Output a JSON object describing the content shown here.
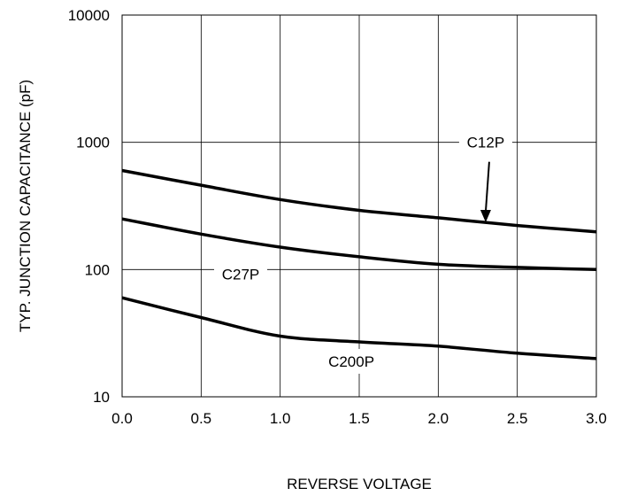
{
  "chart_data": {
    "type": "line",
    "title": "",
    "xlabel": "REVERSE VOLTAGE",
    "ylabel": "TYP. JUNCTION CAPACITANCE (pF)",
    "xlim": [
      0,
      3
    ],
    "ylim": [
      10,
      10000
    ],
    "y_scale": "log",
    "grid": true,
    "x_ticks": [
      "0.0",
      "0.5",
      "1.0",
      "1.5",
      "2.0",
      "2.5",
      "3.0"
    ],
    "y_ticks": [
      "10",
      "100",
      "1000",
      "10000"
    ],
    "legend": "none",
    "series": [
      {
        "name": "C12P",
        "x": [
          0,
          0.5,
          1.0,
          1.5,
          2.0,
          2.5,
          3.0
        ],
        "values": [
          600,
          460,
          355,
          292,
          255,
          222,
          198
        ]
      },
      {
        "name": "C27P",
        "x": [
          0,
          0.5,
          1.0,
          1.5,
          2.0,
          2.5,
          3.0
        ],
        "values": [
          250,
          190,
          150,
          126,
          110,
          104,
          100
        ]
      },
      {
        "name": "C200P",
        "x": [
          0,
          0.5,
          1.0,
          1.5,
          2.0,
          2.5,
          3.0
        ],
        "values": [
          60,
          42,
          30,
          27,
          25,
          22,
          20
        ]
      }
    ],
    "annotations": [
      {
        "text": "C12P",
        "x": 2.3,
        "y": 1000,
        "arrow_to": {
          "x": 2.3,
          "y": 235
        }
      },
      {
        "text": "C27P",
        "x": 0.75,
        "y": 92
      },
      {
        "text": "C200P",
        "x": 1.45,
        "y": 19
      }
    ]
  }
}
